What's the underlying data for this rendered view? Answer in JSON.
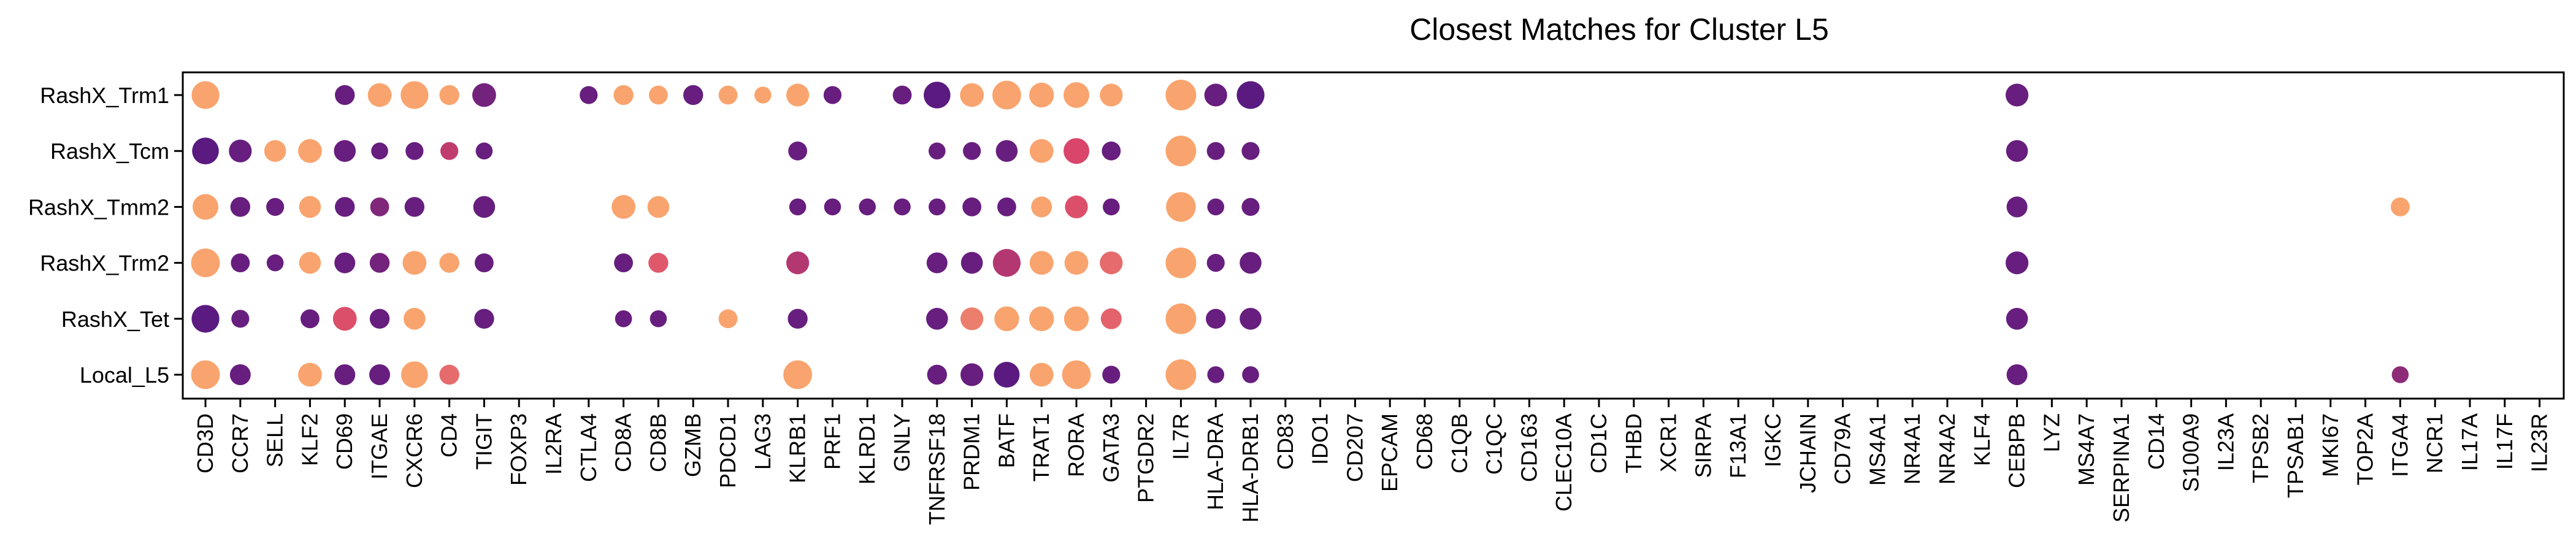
{
  "chart_data": {
    "type": "dot-plot",
    "title": "Closest Matches for Cluster L5",
    "xlabel": "",
    "ylabel": "",
    "grid": false,
    "legend": "none",
    "rows": [
      "RashX_Trm1",
      "RashX_Tcm",
      "RashX_Tmm2",
      "RashX_Trm2",
      "RashX_Tet",
      "Local_L5"
    ],
    "genes": [
      "CD3D",
      "CCR7",
      "SELL",
      "KLF2",
      "CD69",
      "ITGAE",
      "CXCR6",
      "CD4",
      "TIGIT",
      "FOXP3",
      "IL2RA",
      "CTLA4",
      "CD8A",
      "CD8B",
      "GZMB",
      "PDCD1",
      "LAG3",
      "KLRB1",
      "PRF1",
      "KLRD1",
      "GNLY",
      "TNFRSF18",
      "PRDM1",
      "BATF",
      "TRAT1",
      "RORA",
      "GATA3",
      "PTGDR2",
      "IL7R",
      "HLA-DRA",
      "HLA-DRB1",
      "CD83",
      "IDO1",
      "CD207",
      "EPCAM",
      "CD68",
      "C1QB",
      "C1QC",
      "CD163",
      "CLEC10A",
      "CD1C",
      "THBD",
      "XCR1",
      "SIRPA",
      "F13A1",
      "IGKC",
      "JCHAIN",
      "CD79A",
      "MS4A1",
      "NR4A1",
      "NR4A2",
      "KLF4",
      "CEBPB",
      "LYZ",
      "MS4A7",
      "SERPINA1",
      "CD14",
      "S100A9",
      "IL23A",
      "TPSB2",
      "TPSAB1",
      "MKI67",
      "TOP2A",
      "ITGA4",
      "NCR1",
      "IL17A",
      "IL17F",
      "IL23R"
    ],
    "color_scale": {
      "low": "#5a1a80",
      "mid": "#d9456b",
      "high": "#f9a46e"
    },
    "dots": [
      {
        "row": "RashX_Trm1",
        "gene": "CD3D",
        "size": 0.85,
        "color": 1.0
      },
      {
        "row": "RashX_Trm1",
        "gene": "CD69",
        "size": 0.45,
        "color": 0.05
      },
      {
        "row": "RashX_Trm1",
        "gene": "ITGAE",
        "size": 0.65,
        "color": 1.0
      },
      {
        "row": "RashX_Trm1",
        "gene": "CXCR6",
        "size": 0.85,
        "color": 1.0
      },
      {
        "row": "RashX_Trm1",
        "gene": "CD4",
        "size": 0.45,
        "color": 1.0
      },
      {
        "row": "RashX_Trm1",
        "gene": "TIGIT",
        "size": 0.65,
        "color": 0.1
      },
      {
        "row": "RashX_Trm1",
        "gene": "CTLA4",
        "size": 0.35,
        "color": 0.05
      },
      {
        "row": "RashX_Trm1",
        "gene": "CD8A",
        "size": 0.45,
        "color": 1.0
      },
      {
        "row": "RashX_Trm1",
        "gene": "CD8B",
        "size": 0.4,
        "color": 1.0
      },
      {
        "row": "RashX_Trm1",
        "gene": "GZMB",
        "size": 0.45,
        "color": 0.05
      },
      {
        "row": "RashX_Trm1",
        "gene": "PDCD1",
        "size": 0.4,
        "color": 1.0
      },
      {
        "row": "RashX_Trm1",
        "gene": "LAG3",
        "size": 0.3,
        "color": 1.0
      },
      {
        "row": "RashX_Trm1",
        "gene": "KLRB1",
        "size": 0.6,
        "color": 1.0
      },
      {
        "row": "RashX_Trm1",
        "gene": "PRF1",
        "size": 0.35,
        "color": 0.05
      },
      {
        "row": "RashX_Trm1",
        "gene": "GNLY",
        "size": 0.4,
        "color": 0.05
      },
      {
        "row": "RashX_Trm1",
        "gene": "TNFRSF18",
        "size": 0.8,
        "color": 0.0
      },
      {
        "row": "RashX_Trm1",
        "gene": "PRDM1",
        "size": 0.65,
        "color": 1.0
      },
      {
        "row": "RashX_Trm1",
        "gene": "BATF",
        "size": 0.9,
        "color": 1.0
      },
      {
        "row": "RashX_Trm1",
        "gene": "TRAT1",
        "size": 0.7,
        "color": 1.0
      },
      {
        "row": "RashX_Trm1",
        "gene": "RORA",
        "size": 0.75,
        "color": 1.0
      },
      {
        "row": "RashX_Trm1",
        "gene": "GATA3",
        "size": 0.6,
        "color": 1.0
      },
      {
        "row": "RashX_Trm1",
        "gene": "IL7R",
        "size": 1.0,
        "color": 1.0
      },
      {
        "row": "RashX_Trm1",
        "gene": "HLA-DRA",
        "size": 0.6,
        "color": 0.05
      },
      {
        "row": "RashX_Trm1",
        "gene": "HLA-DRB1",
        "size": 0.85,
        "color": 0.0
      },
      {
        "row": "RashX_Trm1",
        "gene": "CEBPB",
        "size": 0.6,
        "color": 0.05
      },
      {
        "row": "RashX_Tcm",
        "gene": "CD3D",
        "size": 0.8,
        "color": 0.0
      },
      {
        "row": "RashX_Tcm",
        "gene": "CCR7",
        "size": 0.6,
        "color": 0.05
      },
      {
        "row": "RashX_Tcm",
        "gene": "SELL",
        "size": 0.55,
        "color": 1.0
      },
      {
        "row": "RashX_Tcm",
        "gene": "KLF2",
        "size": 0.65,
        "color": 1.0
      },
      {
        "row": "RashX_Tcm",
        "gene": "CD69",
        "size": 0.55,
        "color": 0.05
      },
      {
        "row": "RashX_Tcm",
        "gene": "ITGAE",
        "size": 0.3,
        "color": 0.05
      },
      {
        "row": "RashX_Tcm",
        "gene": "CXCR6",
        "size": 0.35,
        "color": 0.05
      },
      {
        "row": "RashX_Tcm",
        "gene": "CD4",
        "size": 0.35,
        "color": 0.4
      },
      {
        "row": "RashX_Tcm",
        "gene": "TIGIT",
        "size": 0.3,
        "color": 0.05
      },
      {
        "row": "RashX_Tcm",
        "gene": "KLRB1",
        "size": 0.4,
        "color": 0.05
      },
      {
        "row": "RashX_Tcm",
        "gene": "TNFRSF18",
        "size": 0.3,
        "color": 0.05
      },
      {
        "row": "RashX_Tcm",
        "gene": "PRDM1",
        "size": 0.35,
        "color": 0.05
      },
      {
        "row": "RashX_Tcm",
        "gene": "BATF",
        "size": 0.55,
        "color": 0.05
      },
      {
        "row": "RashX_Tcm",
        "gene": "TRAT1",
        "size": 0.65,
        "color": 1.0
      },
      {
        "row": "RashX_Tcm",
        "gene": "RORA",
        "size": 0.75,
        "color": 0.5
      },
      {
        "row": "RashX_Tcm",
        "gene": "GATA3",
        "size": 0.4,
        "color": 0.05
      },
      {
        "row": "RashX_Tcm",
        "gene": "IL7R",
        "size": 1.0,
        "color": 1.0
      },
      {
        "row": "RashX_Tcm",
        "gene": "HLA-DRA",
        "size": 0.35,
        "color": 0.05
      },
      {
        "row": "RashX_Tcm",
        "gene": "HLA-DRB1",
        "size": 0.35,
        "color": 0.05
      },
      {
        "row": "RashX_Tcm",
        "gene": "CEBPB",
        "size": 0.55,
        "color": 0.05
      },
      {
        "row": "RashX_Tmm2",
        "gene": "CD3D",
        "size": 0.75,
        "color": 1.0
      },
      {
        "row": "RashX_Tmm2",
        "gene": "CCR7",
        "size": 0.45,
        "color": 0.05
      },
      {
        "row": "RashX_Tmm2",
        "gene": "SELL",
        "size": 0.35,
        "color": 0.05
      },
      {
        "row": "RashX_Tmm2",
        "gene": "KLF2",
        "size": 0.55,
        "color": 1.0
      },
      {
        "row": "RashX_Tmm2",
        "gene": "CD69",
        "size": 0.45,
        "color": 0.05
      },
      {
        "row": "RashX_Tmm2",
        "gene": "ITGAE",
        "size": 0.4,
        "color": 0.15
      },
      {
        "row": "RashX_Tmm2",
        "gene": "CXCR6",
        "size": 0.45,
        "color": 0.05
      },
      {
        "row": "RashX_Tmm2",
        "gene": "TIGIT",
        "size": 0.55,
        "color": 0.05
      },
      {
        "row": "RashX_Tmm2",
        "gene": "CD8A",
        "size": 0.65,
        "color": 1.0
      },
      {
        "row": "RashX_Tmm2",
        "gene": "CD8B",
        "size": 0.55,
        "color": 1.0
      },
      {
        "row": "RashX_Tmm2",
        "gene": "KLRB1",
        "size": 0.3,
        "color": 0.05
      },
      {
        "row": "RashX_Tmm2",
        "gene": "PRF1",
        "size": 0.3,
        "color": 0.05
      },
      {
        "row": "RashX_Tmm2",
        "gene": "KLRD1",
        "size": 0.3,
        "color": 0.05
      },
      {
        "row": "RashX_Tmm2",
        "gene": "GNLY",
        "size": 0.3,
        "color": 0.05
      },
      {
        "row": "RashX_Tmm2",
        "gene": "TNFRSF18",
        "size": 0.3,
        "color": 0.05
      },
      {
        "row": "RashX_Tmm2",
        "gene": "PRDM1",
        "size": 0.4,
        "color": 0.05
      },
      {
        "row": "RashX_Tmm2",
        "gene": "BATF",
        "size": 0.4,
        "color": 0.05
      },
      {
        "row": "RashX_Tmm2",
        "gene": "TRAT1",
        "size": 0.5,
        "color": 1.0
      },
      {
        "row": "RashX_Tmm2",
        "gene": "RORA",
        "size": 0.6,
        "color": 0.55
      },
      {
        "row": "RashX_Tmm2",
        "gene": "GATA3",
        "size": 0.3,
        "color": 0.05
      },
      {
        "row": "RashX_Tmm2",
        "gene": "IL7R",
        "size": 0.95,
        "color": 1.0
      },
      {
        "row": "RashX_Tmm2",
        "gene": "HLA-DRA",
        "size": 0.3,
        "color": 0.05
      },
      {
        "row": "RashX_Tmm2",
        "gene": "HLA-DRB1",
        "size": 0.35,
        "color": 0.05
      },
      {
        "row": "RashX_Tmm2",
        "gene": "CEBPB",
        "size": 0.5,
        "color": 0.05
      },
      {
        "row": "RashX_Tmm2",
        "gene": "ITGA4",
        "size": 0.4,
        "color": 1.0
      },
      {
        "row": "RashX_Trm2",
        "gene": "CD3D",
        "size": 0.9,
        "color": 1.0
      },
      {
        "row": "RashX_Trm2",
        "gene": "CCR7",
        "size": 0.4,
        "color": 0.05
      },
      {
        "row": "RashX_Trm2",
        "gene": "SELL",
        "size": 0.3,
        "color": 0.05
      },
      {
        "row": "RashX_Trm2",
        "gene": "KLF2",
        "size": 0.55,
        "color": 1.0
      },
      {
        "row": "RashX_Trm2",
        "gene": "CD69",
        "size": 0.5,
        "color": 0.05
      },
      {
        "row": "RashX_Trm2",
        "gene": "ITGAE",
        "size": 0.45,
        "color": 0.1
      },
      {
        "row": "RashX_Trm2",
        "gene": "CXCR6",
        "size": 0.65,
        "color": 1.0
      },
      {
        "row": "RashX_Trm2",
        "gene": "CD4",
        "size": 0.45,
        "color": 1.0
      },
      {
        "row": "RashX_Trm2",
        "gene": "TIGIT",
        "size": 0.4,
        "color": 0.05
      },
      {
        "row": "RashX_Trm2",
        "gene": "CD8A",
        "size": 0.4,
        "color": 0.05
      },
      {
        "row": "RashX_Trm2",
        "gene": "CD8B",
        "size": 0.45,
        "color": 0.6
      },
      {
        "row": "RashX_Trm2",
        "gene": "KLRB1",
        "size": 0.6,
        "color": 0.35
      },
      {
        "row": "RashX_Trm2",
        "gene": "TNFRSF18",
        "size": 0.5,
        "color": 0.05
      },
      {
        "row": "RashX_Trm2",
        "gene": "PRDM1",
        "size": 0.55,
        "color": 0.05
      },
      {
        "row": "RashX_Trm2",
        "gene": "BATF",
        "size": 0.85,
        "color": 0.35
      },
      {
        "row": "RashX_Trm2",
        "gene": "TRAT1",
        "size": 0.65,
        "color": 1.0
      },
      {
        "row": "RashX_Trm2",
        "gene": "RORA",
        "size": 0.65,
        "color": 1.0
      },
      {
        "row": "RashX_Trm2",
        "gene": "GATA3",
        "size": 0.6,
        "color": 0.7
      },
      {
        "row": "RashX_Trm2",
        "gene": "IL7R",
        "size": 1.0,
        "color": 1.0
      },
      {
        "row": "RashX_Trm2",
        "gene": "HLA-DRA",
        "size": 0.35,
        "color": 0.05
      },
      {
        "row": "RashX_Trm2",
        "gene": "HLA-DRB1",
        "size": 0.55,
        "color": 0.05
      },
      {
        "row": "RashX_Trm2",
        "gene": "CEBPB",
        "size": 0.6,
        "color": 0.05
      },
      {
        "row": "RashX_Tet",
        "gene": "CD3D",
        "size": 0.85,
        "color": 0.0
      },
      {
        "row": "RashX_Tet",
        "gene": "CCR7",
        "size": 0.35,
        "color": 0.05
      },
      {
        "row": "RashX_Tet",
        "gene": "KLF2",
        "size": 0.4,
        "color": 0.05
      },
      {
        "row": "RashX_Tet",
        "gene": "CD69",
        "size": 0.65,
        "color": 0.55
      },
      {
        "row": "RashX_Tet",
        "gene": "ITGAE",
        "size": 0.45,
        "color": 0.05
      },
      {
        "row": "RashX_Tet",
        "gene": "CXCR6",
        "size": 0.55,
        "color": 1.0
      },
      {
        "row": "RashX_Tet",
        "gene": "TIGIT",
        "size": 0.45,
        "color": 0.05
      },
      {
        "row": "RashX_Tet",
        "gene": "CD8A",
        "size": 0.3,
        "color": 0.05
      },
      {
        "row": "RashX_Tet",
        "gene": "CD8B",
        "size": 0.3,
        "color": 0.05
      },
      {
        "row": "RashX_Tet",
        "gene": "PDCD1",
        "size": 0.4,
        "color": 1.0
      },
      {
        "row": "RashX_Tet",
        "gene": "KLRB1",
        "size": 0.45,
        "color": 0.05
      },
      {
        "row": "RashX_Tet",
        "gene": "TNFRSF18",
        "size": 0.55,
        "color": 0.05
      },
      {
        "row": "RashX_Tet",
        "gene": "PRDM1",
        "size": 0.6,
        "color": 0.8
      },
      {
        "row": "RashX_Tet",
        "gene": "BATF",
        "size": 0.7,
        "color": 1.0
      },
      {
        "row": "RashX_Tet",
        "gene": "TRAT1",
        "size": 0.7,
        "color": 1.0
      },
      {
        "row": "RashX_Tet",
        "gene": "RORA",
        "size": 0.7,
        "color": 1.0
      },
      {
        "row": "RashX_Tet",
        "gene": "GATA3",
        "size": 0.5,
        "color": 0.65
      },
      {
        "row": "RashX_Tet",
        "gene": "IL7R",
        "size": 1.0,
        "color": 1.0
      },
      {
        "row": "RashX_Tet",
        "gene": "HLA-DRA",
        "size": 0.45,
        "color": 0.05
      },
      {
        "row": "RashX_Tet",
        "gene": "HLA-DRB1",
        "size": 0.55,
        "color": 0.05
      },
      {
        "row": "RashX_Tet",
        "gene": "CEBPB",
        "size": 0.55,
        "color": 0.05
      },
      {
        "row": "Local_L5",
        "gene": "CD3D",
        "size": 0.9,
        "color": 1.0
      },
      {
        "row": "Local_L5",
        "gene": "CCR7",
        "size": 0.5,
        "color": 0.05
      },
      {
        "row": "Local_L5",
        "gene": "KLF2",
        "size": 0.65,
        "color": 1.0
      },
      {
        "row": "Local_L5",
        "gene": "CD69",
        "size": 0.5,
        "color": 0.05
      },
      {
        "row": "Local_L5",
        "gene": "ITGAE",
        "size": 0.5,
        "color": 0.05
      },
      {
        "row": "Local_L5",
        "gene": "CXCR6",
        "size": 0.8,
        "color": 1.0
      },
      {
        "row": "Local_L5",
        "gene": "CD4",
        "size": 0.45,
        "color": 0.7
      },
      {
        "row": "Local_L5",
        "gene": "KLRB1",
        "size": 0.9,
        "color": 1.0
      },
      {
        "row": "Local_L5",
        "gene": "TNFRSF18",
        "size": 0.45,
        "color": 0.05
      },
      {
        "row": "Local_L5",
        "gene": "PRDM1",
        "size": 0.6,
        "color": 0.05
      },
      {
        "row": "Local_L5",
        "gene": "BATF",
        "size": 0.75,
        "color": 0.0
      },
      {
        "row": "Local_L5",
        "gene": "TRAT1",
        "size": 0.65,
        "color": 1.0
      },
      {
        "row": "Local_L5",
        "gene": "RORA",
        "size": 0.9,
        "color": 1.0
      },
      {
        "row": "Local_L5",
        "gene": "GATA3",
        "size": 0.35,
        "color": 0.05
      },
      {
        "row": "Local_L5",
        "gene": "IL7R",
        "size": 1.0,
        "color": 1.0
      },
      {
        "row": "Local_L5",
        "gene": "HLA-DRA",
        "size": 0.3,
        "color": 0.05
      },
      {
        "row": "Local_L5",
        "gene": "HLA-DRB1",
        "size": 0.3,
        "color": 0.05
      },
      {
        "row": "Local_L5",
        "gene": "CEBPB",
        "size": 0.5,
        "color": 0.05
      },
      {
        "row": "Local_L5",
        "gene": "ITGA4",
        "size": 0.3,
        "color": 0.2
      }
    ]
  }
}
